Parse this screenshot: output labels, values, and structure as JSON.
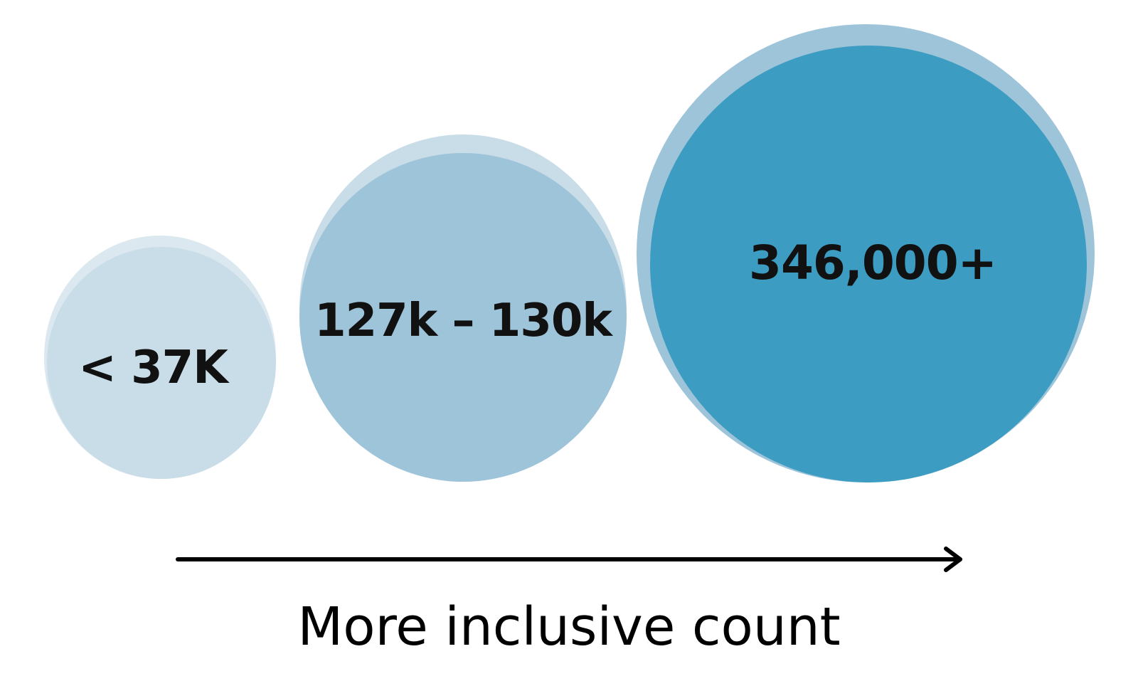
{
  "diagram": {
    "circles": [
      {
        "label": "< 37K",
        "outer_color": "#dbe8ef",
        "inner_color": "#c9dde8"
      },
      {
        "label": "127k – 130k",
        "outer_color": "#c9dde8",
        "inner_color": "#9ec4d9"
      },
      {
        "label": "346,000+",
        "outer_color": "#9ec4d9",
        "inner_color": "#3d9cc2"
      }
    ],
    "axis": {
      "label": "More inclusive count",
      "arrow_icon": "arrow-right-icon",
      "color": "#000000"
    }
  }
}
